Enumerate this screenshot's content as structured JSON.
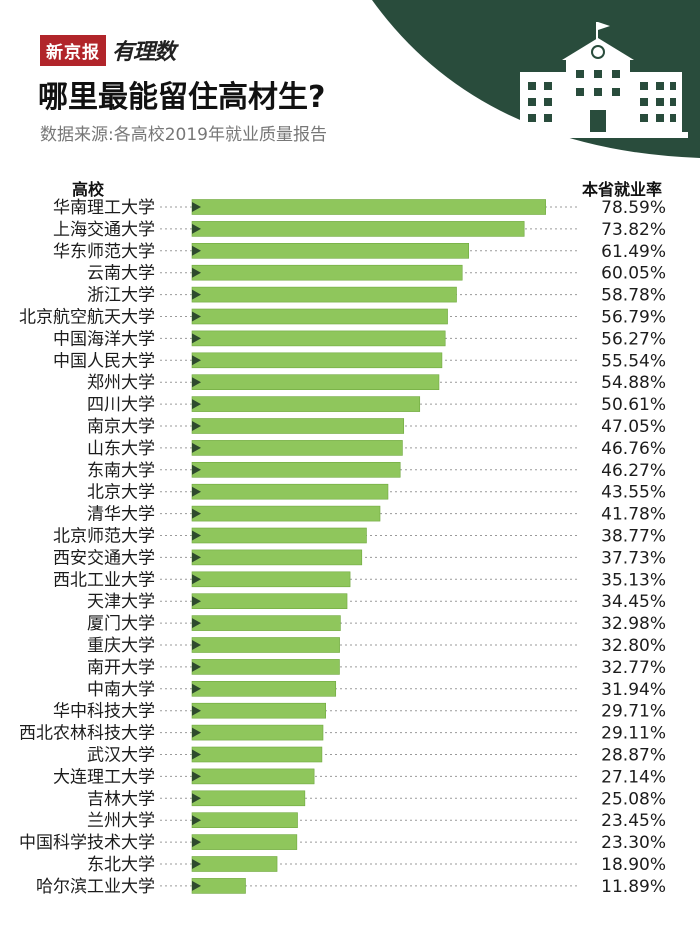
{
  "brand": {
    "tag": "新京报",
    "sub": "有理数"
  },
  "title": "哪里最能留住高材生?",
  "source": "数据来源:各高校2019年就业质量报告",
  "colors": {
    "bar": "#8fc65c",
    "bar_edge": "#6fa83e",
    "marker": "#2e4a2e",
    "corner": "#294c3c",
    "brand_red": "#b1252a"
  },
  "chart_data": {
    "type": "bar",
    "orientation": "horizontal",
    "xlabel": "高校",
    "ylabel": "本省就业率",
    "unit": "%",
    "xlim": [
      0,
      80
    ],
    "categories": [
      "华南理工大学",
      "上海交通大学",
      "华东师范大学",
      "云南大学",
      "浙江大学",
      "北京航空航天大学",
      "中国海洋大学",
      "中国人民大学",
      "郑州大学",
      "四川大学",
      "南京大学",
      "山东大学",
      "东南大学",
      "北京大学",
      "清华大学",
      "北京师范大学",
      "西安交通大学",
      "西北工业大学",
      "天津大学",
      "厦门大学",
      "重庆大学",
      "南开大学",
      "中南大学",
      "华中科技大学",
      "西北农林科技大学",
      "武汉大学",
      "大连理工大学",
      "吉林大学",
      "兰州大学",
      "中国科学技术大学",
      "东北大学",
      "哈尔滨工业大学"
    ],
    "values": [
      78.59,
      73.82,
      61.49,
      60.05,
      58.78,
      56.79,
      56.27,
      55.54,
      54.88,
      50.61,
      47.05,
      46.76,
      46.27,
      43.55,
      41.78,
      38.77,
      37.73,
      35.13,
      34.45,
      32.98,
      32.8,
      32.77,
      31.94,
      29.71,
      29.11,
      28.87,
      27.14,
      25.08,
      23.45,
      23.3,
      18.9,
      11.89
    ],
    "labels": [
      "78.59%",
      "73.82%",
      "61.49%",
      "60.05%",
      "58.78%",
      "56.79%",
      "56.27%",
      "55.54%",
      "54.88%",
      "50.61%",
      "47.05%",
      "46.76%",
      "46.27%",
      "43.55%",
      "41.78%",
      "38.77%",
      "37.73%",
      "35.13%",
      "34.45%",
      "32.98%",
      "32.80%",
      "32.77%",
      "31.94%",
      "29.71%",
      "29.11%",
      "28.87%",
      "27.14%",
      "25.08%",
      "23.45%",
      "23.30%",
      "18.90%",
      "11.89%"
    ]
  }
}
